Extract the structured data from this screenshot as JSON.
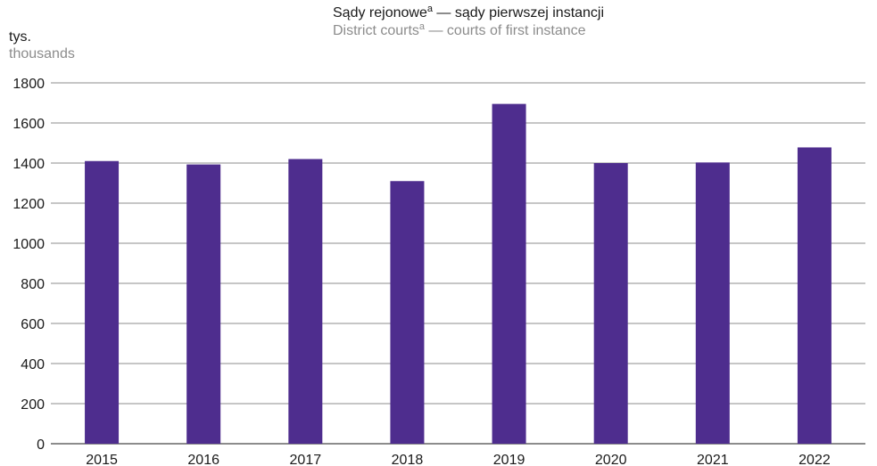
{
  "chart_data": {
    "type": "bar",
    "title": "Sądy rejonowe",
    "title_superscript": "a",
    "title_suffix": " — sądy pierwszej instancji",
    "subtitle": "District courts",
    "subtitle_superscript": "a",
    "subtitle_suffix": " — courts of first instance",
    "ylabel": "tys.",
    "ylabel_secondary": "thousands",
    "xlabel": "",
    "categories": [
      "2015",
      "2016",
      "2017",
      "2018",
      "2019",
      "2020",
      "2021",
      "2022"
    ],
    "values": [
      1410,
      1393,
      1420,
      1310,
      1695,
      1400,
      1403,
      1478
    ],
    "ylim": [
      0,
      1800
    ],
    "yticks": [
      0,
      200,
      400,
      600,
      800,
      1000,
      1200,
      1400,
      1600,
      1800
    ],
    "grid": true,
    "legend": "none",
    "bar_color": "#4e2d8e",
    "grid_color": "#8c8c8c"
  }
}
